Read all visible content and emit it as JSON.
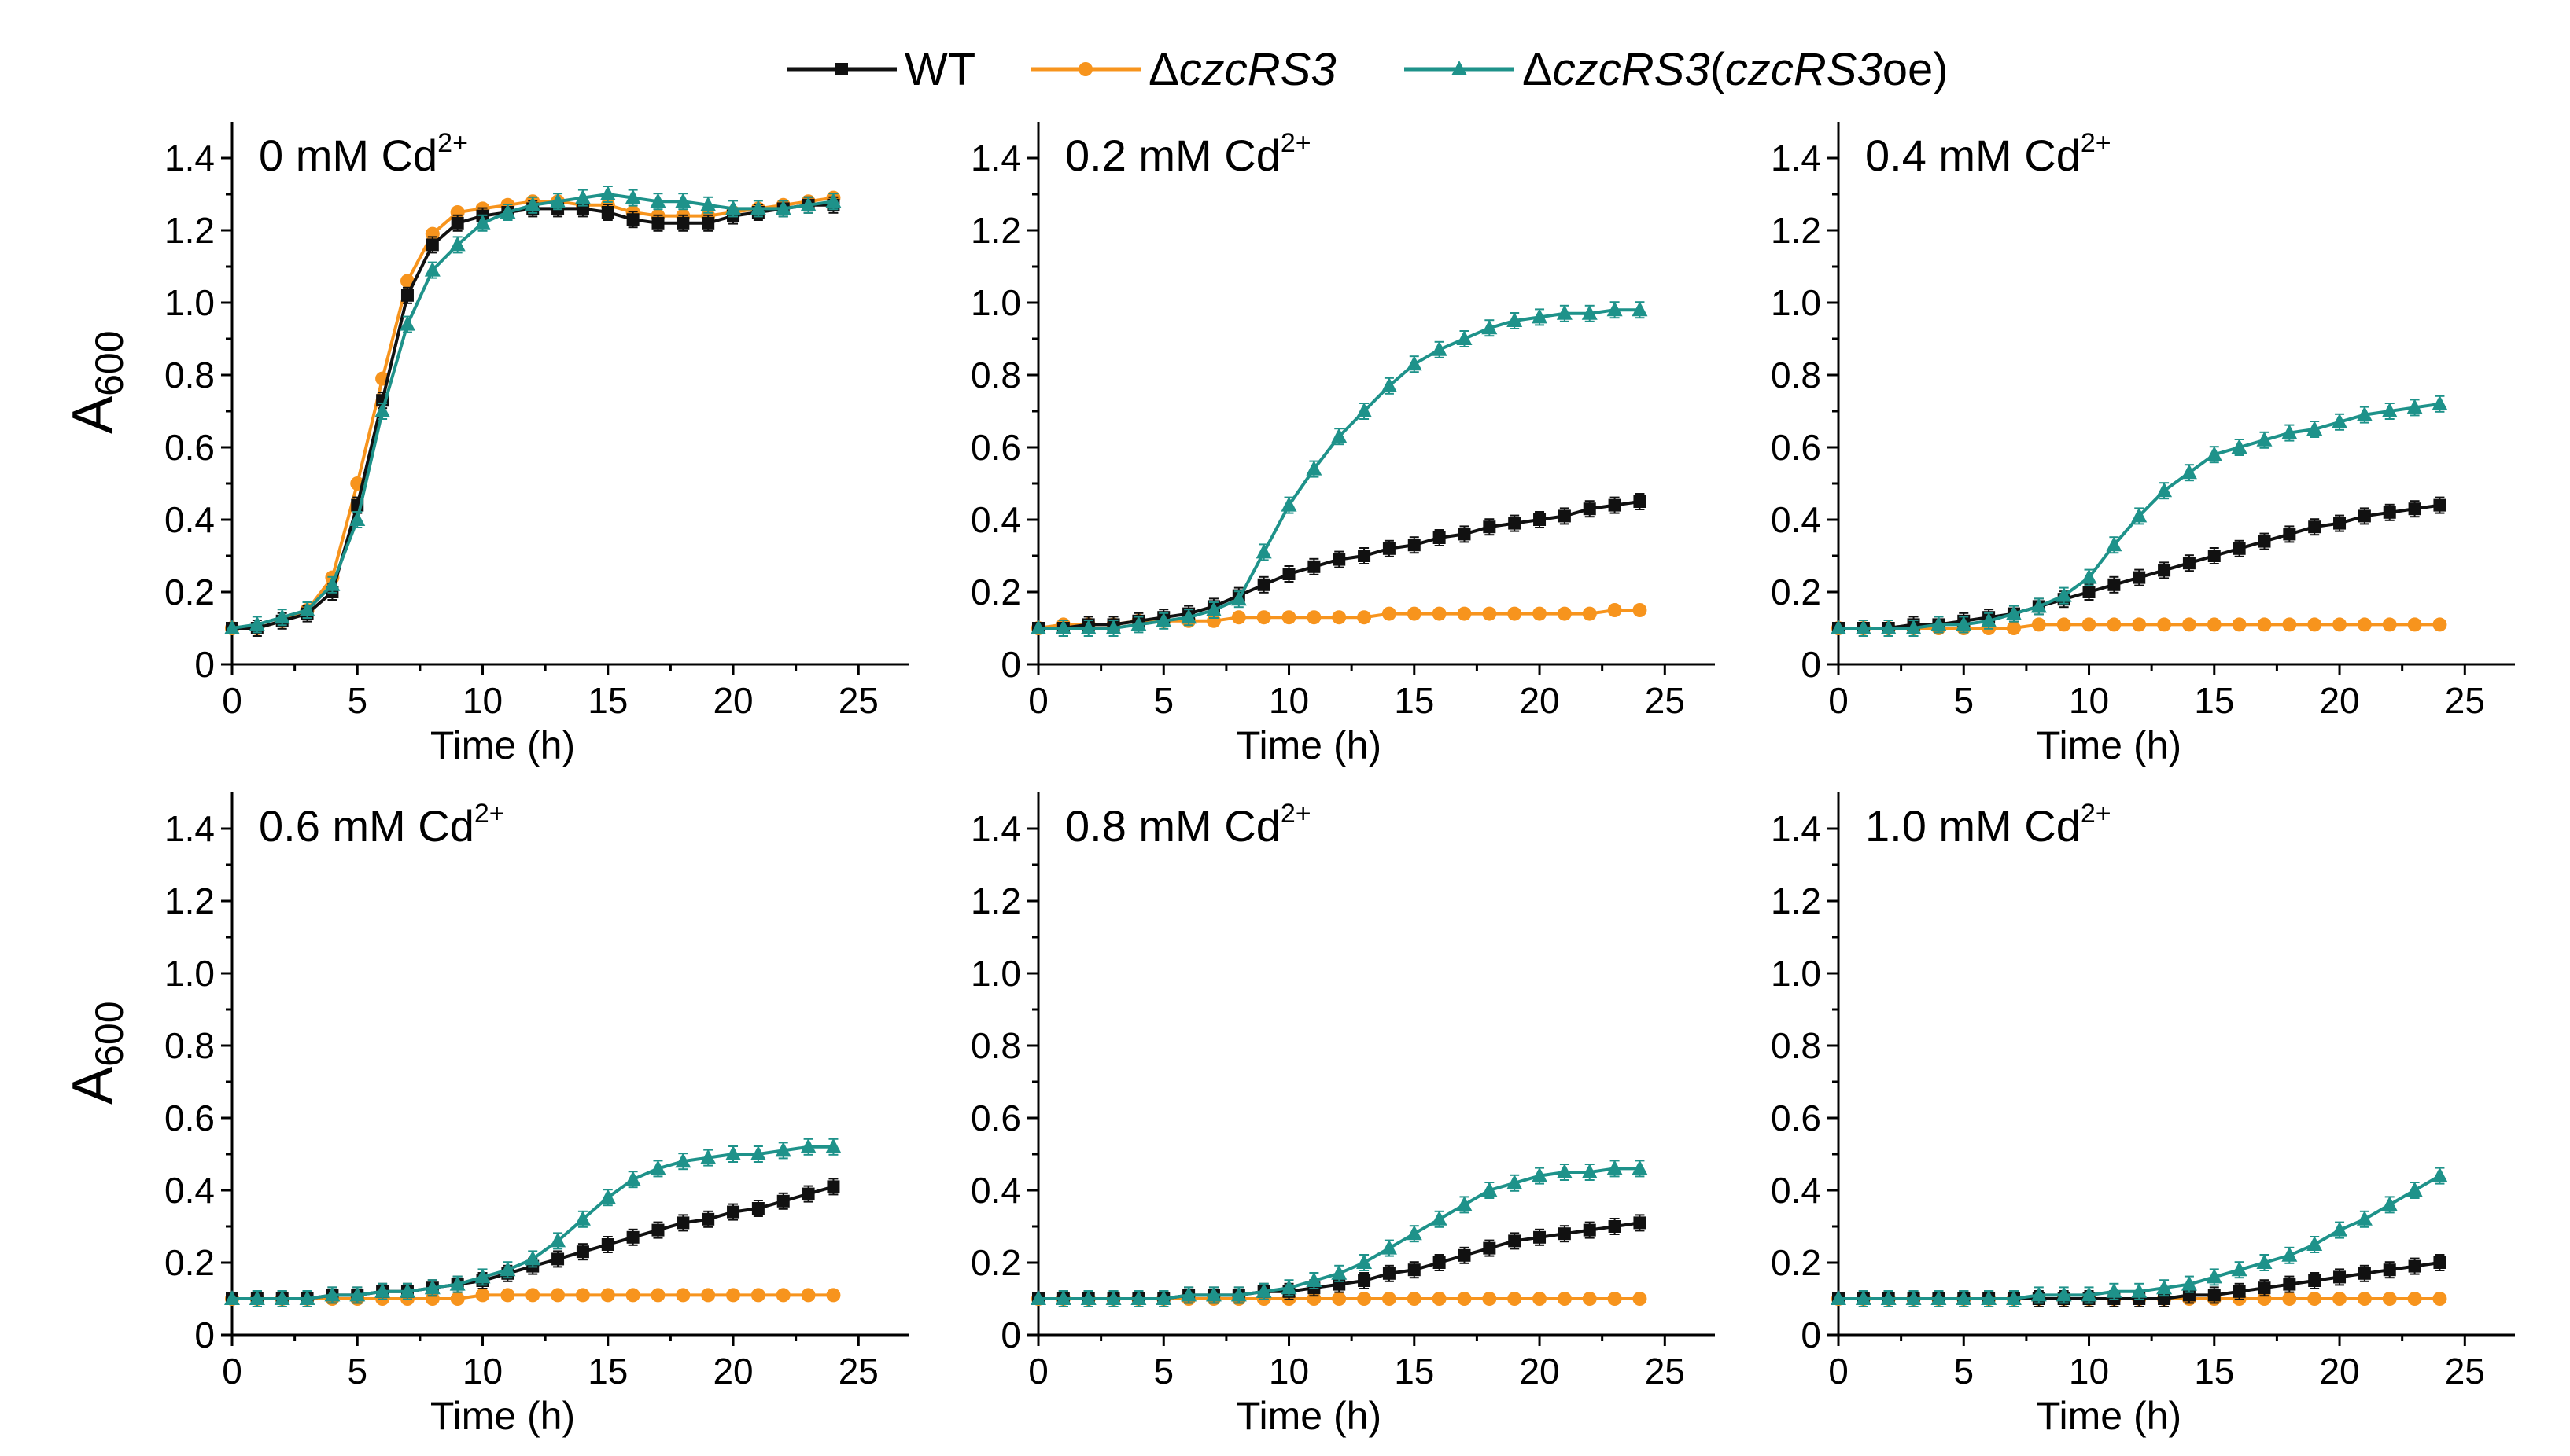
{
  "legend": [
    {
      "key": "wt",
      "label": "WT",
      "color": "#111111",
      "marker": "square"
    },
    {
      "key": "dczcrs3",
      "label_prefix": "Δ",
      "label_italic": "czcRS3",
      "label_rest": "",
      "color": "#f7941d",
      "marker": "circle"
    },
    {
      "key": "oe",
      "label_prefix": "Δ",
      "label_italic": "czcRS3",
      "label_rest": "(",
      "label_italic2": "czcRS3",
      "label_rest2": "oe)",
      "color": "#1e928a",
      "marker": "triangle"
    }
  ],
  "axis_labels": {
    "ylabel_main": "A",
    "ylabel_sub": "600",
    "xlabel": "Time (h)"
  },
  "chart_data": [
    {
      "type": "line",
      "title_main": "0 mM Cd",
      "title_sup": "2+",
      "xlabel": "Time (h)",
      "ylabel": "A600",
      "xlim": [
        0,
        27
      ],
      "ylim": [
        0,
        1.5
      ],
      "xticks": [
        "0",
        "5",
        "10",
        "15",
        "20",
        "25"
      ],
      "yticks": [
        "0",
        "0.2",
        "0.4",
        "0.6",
        "0.8",
        "1.0",
        "1.2",
        "1.4"
      ],
      "x": [
        0,
        1,
        2,
        3,
        4,
        5,
        6,
        7,
        8,
        9,
        10,
        11,
        12,
        13,
        14,
        15,
        16,
        17,
        18,
        19,
        20,
        21,
        22,
        23,
        24
      ],
      "series": [
        {
          "name": "WT",
          "values": [
            0.1,
            0.1,
            0.12,
            0.14,
            0.2,
            0.44,
            0.73,
            1.02,
            1.16,
            1.22,
            1.24,
            1.25,
            1.26,
            1.26,
            1.26,
            1.25,
            1.23,
            1.22,
            1.22,
            1.22,
            1.24,
            1.25,
            1.26,
            1.27,
            1.27
          ]
        },
        {
          "name": "ΔczcRS3",
          "values": [
            0.1,
            0.1,
            0.12,
            0.15,
            0.24,
            0.5,
            0.79,
            1.06,
            1.19,
            1.25,
            1.26,
            1.27,
            1.28,
            1.28,
            1.27,
            1.27,
            1.25,
            1.24,
            1.24,
            1.24,
            1.25,
            1.26,
            1.27,
            1.28,
            1.29
          ]
        },
        {
          "name": "ΔczcRS3(czcRS3oe)",
          "values": [
            0.1,
            0.11,
            0.13,
            0.15,
            0.22,
            0.4,
            0.7,
            0.94,
            1.09,
            1.16,
            1.22,
            1.25,
            1.27,
            1.28,
            1.29,
            1.3,
            1.29,
            1.28,
            1.28,
            1.27,
            1.26,
            1.26,
            1.26,
            1.27,
            1.28
          ]
        }
      ]
    },
    {
      "type": "line",
      "title_main": "0.2 mM Cd",
      "title_sup": "2+",
      "xlabel": "Time (h)",
      "ylabel": "A600",
      "xlim": [
        0,
        27
      ],
      "ylim": [
        0,
        1.5
      ],
      "xticks": [
        "0",
        "5",
        "10",
        "15",
        "20",
        "25"
      ],
      "yticks": [
        "0",
        "0.2",
        "0.4",
        "0.6",
        "0.8",
        "1.0",
        "1.2",
        "1.4"
      ],
      "x": [
        0,
        1,
        2,
        3,
        4,
        5,
        6,
        7,
        8,
        9,
        10,
        11,
        12,
        13,
        14,
        15,
        16,
        17,
        18,
        19,
        20,
        21,
        22,
        23,
        24
      ],
      "series": [
        {
          "name": "WT",
          "values": [
            0.1,
            0.1,
            0.11,
            0.11,
            0.12,
            0.13,
            0.14,
            0.16,
            0.19,
            0.22,
            0.25,
            0.27,
            0.29,
            0.3,
            0.32,
            0.33,
            0.35,
            0.36,
            0.38,
            0.39,
            0.4,
            0.41,
            0.43,
            0.44,
            0.45
          ]
        },
        {
          "name": "ΔczcRS3",
          "values": [
            0.1,
            0.11,
            0.11,
            0.11,
            0.12,
            0.12,
            0.12,
            0.12,
            0.13,
            0.13,
            0.13,
            0.13,
            0.13,
            0.13,
            0.14,
            0.14,
            0.14,
            0.14,
            0.14,
            0.14,
            0.14,
            0.14,
            0.14,
            0.15,
            0.15
          ]
        },
        {
          "name": "ΔczcRS3(czcRS3oe)",
          "values": [
            0.1,
            0.1,
            0.1,
            0.1,
            0.11,
            0.12,
            0.13,
            0.15,
            0.18,
            0.31,
            0.44,
            0.54,
            0.63,
            0.7,
            0.77,
            0.83,
            0.87,
            0.9,
            0.93,
            0.95,
            0.96,
            0.97,
            0.97,
            0.98,
            0.98
          ]
        }
      ]
    },
    {
      "type": "line",
      "title_main": "0.4 mM Cd",
      "title_sup": "2+",
      "xlabel": "Time (h)",
      "ylabel": "A600",
      "xlim": [
        0,
        27
      ],
      "ylim": [
        0,
        1.5
      ],
      "xticks": [
        "0",
        "5",
        "10",
        "15",
        "20",
        "25"
      ],
      "yticks": [
        "0",
        "0.2",
        "0.4",
        "0.6",
        "0.8",
        "1.0",
        "1.2",
        "1.4"
      ],
      "x": [
        0,
        1,
        2,
        3,
        4,
        5,
        6,
        7,
        8,
        9,
        10,
        11,
        12,
        13,
        14,
        15,
        16,
        17,
        18,
        19,
        20,
        21,
        22,
        23,
        24
      ],
      "series": [
        {
          "name": "WT",
          "values": [
            0.1,
            0.1,
            0.1,
            0.11,
            0.11,
            0.12,
            0.13,
            0.14,
            0.16,
            0.18,
            0.2,
            0.22,
            0.24,
            0.26,
            0.28,
            0.3,
            0.32,
            0.34,
            0.36,
            0.38,
            0.39,
            0.41,
            0.42,
            0.43,
            0.44
          ]
        },
        {
          "name": "ΔczcRS3",
          "values": [
            0.1,
            0.1,
            0.1,
            0.1,
            0.1,
            0.1,
            0.1,
            0.1,
            0.11,
            0.11,
            0.11,
            0.11,
            0.11,
            0.11,
            0.11,
            0.11,
            0.11,
            0.11,
            0.11,
            0.11,
            0.11,
            0.11,
            0.11,
            0.11,
            0.11
          ]
        },
        {
          "name": "ΔczcRS3(czcRS3oe)",
          "values": [
            0.1,
            0.1,
            0.1,
            0.1,
            0.11,
            0.11,
            0.12,
            0.14,
            0.16,
            0.19,
            0.24,
            0.33,
            0.41,
            0.48,
            0.53,
            0.58,
            0.6,
            0.62,
            0.64,
            0.65,
            0.67,
            0.69,
            0.7,
            0.71,
            0.72
          ]
        }
      ]
    },
    {
      "type": "line",
      "title_main": "0.6 mM Cd",
      "title_sup": "2+",
      "xlabel": "Time (h)",
      "ylabel": "A600",
      "xlim": [
        0,
        27
      ],
      "ylim": [
        0,
        1.5
      ],
      "xticks": [
        "0",
        "5",
        "10",
        "15",
        "20",
        "25"
      ],
      "yticks": [
        "0",
        "0.2",
        "0.4",
        "0.6",
        "0.8",
        "1.0",
        "1.2",
        "1.4"
      ],
      "x": [
        0,
        1,
        2,
        3,
        4,
        5,
        6,
        7,
        8,
        9,
        10,
        11,
        12,
        13,
        14,
        15,
        16,
        17,
        18,
        19,
        20,
        21,
        22,
        23,
        24
      ],
      "series": [
        {
          "name": "WT",
          "values": [
            0.1,
            0.1,
            0.1,
            0.1,
            0.11,
            0.11,
            0.12,
            0.12,
            0.13,
            0.14,
            0.15,
            0.17,
            0.19,
            0.21,
            0.23,
            0.25,
            0.27,
            0.29,
            0.31,
            0.32,
            0.34,
            0.35,
            0.37,
            0.39,
            0.41
          ]
        },
        {
          "name": "ΔczcRS3",
          "values": [
            0.1,
            0.1,
            0.1,
            0.1,
            0.1,
            0.1,
            0.1,
            0.1,
            0.1,
            0.1,
            0.11,
            0.11,
            0.11,
            0.11,
            0.11,
            0.11,
            0.11,
            0.11,
            0.11,
            0.11,
            0.11,
            0.11,
            0.11,
            0.11,
            0.11
          ]
        },
        {
          "name": "ΔczcRS3(czcRS3oe)",
          "values": [
            0.1,
            0.1,
            0.1,
            0.1,
            0.11,
            0.11,
            0.12,
            0.12,
            0.13,
            0.14,
            0.16,
            0.18,
            0.21,
            0.26,
            0.32,
            0.38,
            0.43,
            0.46,
            0.48,
            0.49,
            0.5,
            0.5,
            0.51,
            0.52,
            0.52
          ]
        }
      ]
    },
    {
      "type": "line",
      "title_main": "0.8 mM Cd",
      "title_sup": "2+",
      "xlabel": "Time (h)",
      "ylabel": "A600",
      "xlim": [
        0,
        27
      ],
      "ylim": [
        0,
        1.5
      ],
      "xticks": [
        "0",
        "5",
        "10",
        "15",
        "20",
        "25"
      ],
      "yticks": [
        "0",
        "0.2",
        "0.4",
        "0.6",
        "0.8",
        "1.0",
        "1.2",
        "1.4"
      ],
      "x": [
        0,
        1,
        2,
        3,
        4,
        5,
        6,
        7,
        8,
        9,
        10,
        11,
        12,
        13,
        14,
        15,
        16,
        17,
        18,
        19,
        20,
        21,
        22,
        23,
        24
      ],
      "series": [
        {
          "name": "WT",
          "values": [
            0.1,
            0.1,
            0.1,
            0.1,
            0.1,
            0.1,
            0.11,
            0.11,
            0.11,
            0.12,
            0.12,
            0.13,
            0.14,
            0.15,
            0.17,
            0.18,
            0.2,
            0.22,
            0.24,
            0.26,
            0.27,
            0.28,
            0.29,
            0.3,
            0.31
          ]
        },
        {
          "name": "ΔczcRS3",
          "values": [
            0.1,
            0.1,
            0.1,
            0.1,
            0.1,
            0.1,
            0.1,
            0.1,
            0.1,
            0.1,
            0.1,
            0.1,
            0.1,
            0.1,
            0.1,
            0.1,
            0.1,
            0.1,
            0.1,
            0.1,
            0.1,
            0.1,
            0.1,
            0.1,
            0.1
          ]
        },
        {
          "name": "ΔczcRS3(czcRS3oe)",
          "values": [
            0.1,
            0.1,
            0.1,
            0.1,
            0.1,
            0.1,
            0.11,
            0.11,
            0.11,
            0.12,
            0.13,
            0.15,
            0.17,
            0.2,
            0.24,
            0.28,
            0.32,
            0.36,
            0.4,
            0.42,
            0.44,
            0.45,
            0.45,
            0.46,
            0.46
          ]
        }
      ]
    },
    {
      "type": "line",
      "title_main": "1.0 mM Cd",
      "title_sup": "2+",
      "xlabel": "Time (h)",
      "ylabel": "A600",
      "xlim": [
        0,
        27
      ],
      "ylim": [
        0,
        1.5
      ],
      "xticks": [
        "0",
        "5",
        "10",
        "15",
        "20",
        "25"
      ],
      "yticks": [
        "0",
        "0.2",
        "0.4",
        "0.6",
        "0.8",
        "1.0",
        "1.2",
        "1.4"
      ],
      "x": [
        0,
        1,
        2,
        3,
        4,
        5,
        6,
        7,
        8,
        9,
        10,
        11,
        12,
        13,
        14,
        15,
        16,
        17,
        18,
        19,
        20,
        21,
        22,
        23,
        24
      ],
      "series": [
        {
          "name": "WT",
          "values": [
            0.1,
            0.1,
            0.1,
            0.1,
            0.1,
            0.1,
            0.1,
            0.1,
            0.1,
            0.1,
            0.1,
            0.1,
            0.1,
            0.1,
            0.11,
            0.11,
            0.12,
            0.13,
            0.14,
            0.15,
            0.16,
            0.17,
            0.18,
            0.19,
            0.2
          ]
        },
        {
          "name": "ΔczcRS3",
          "values": [
            0.1,
            0.1,
            0.1,
            0.1,
            0.1,
            0.1,
            0.1,
            0.1,
            0.1,
            0.1,
            0.1,
            0.1,
            0.1,
            0.1,
            0.1,
            0.1,
            0.1,
            0.1,
            0.1,
            0.1,
            0.1,
            0.1,
            0.1,
            0.1,
            0.1
          ]
        },
        {
          "name": "ΔczcRS3(czcRS3oe)",
          "values": [
            0.1,
            0.1,
            0.1,
            0.1,
            0.1,
            0.1,
            0.1,
            0.1,
            0.11,
            0.11,
            0.11,
            0.12,
            0.12,
            0.13,
            0.14,
            0.16,
            0.18,
            0.2,
            0.22,
            0.25,
            0.29,
            0.32,
            0.36,
            0.4,
            0.44
          ]
        }
      ]
    }
  ]
}
